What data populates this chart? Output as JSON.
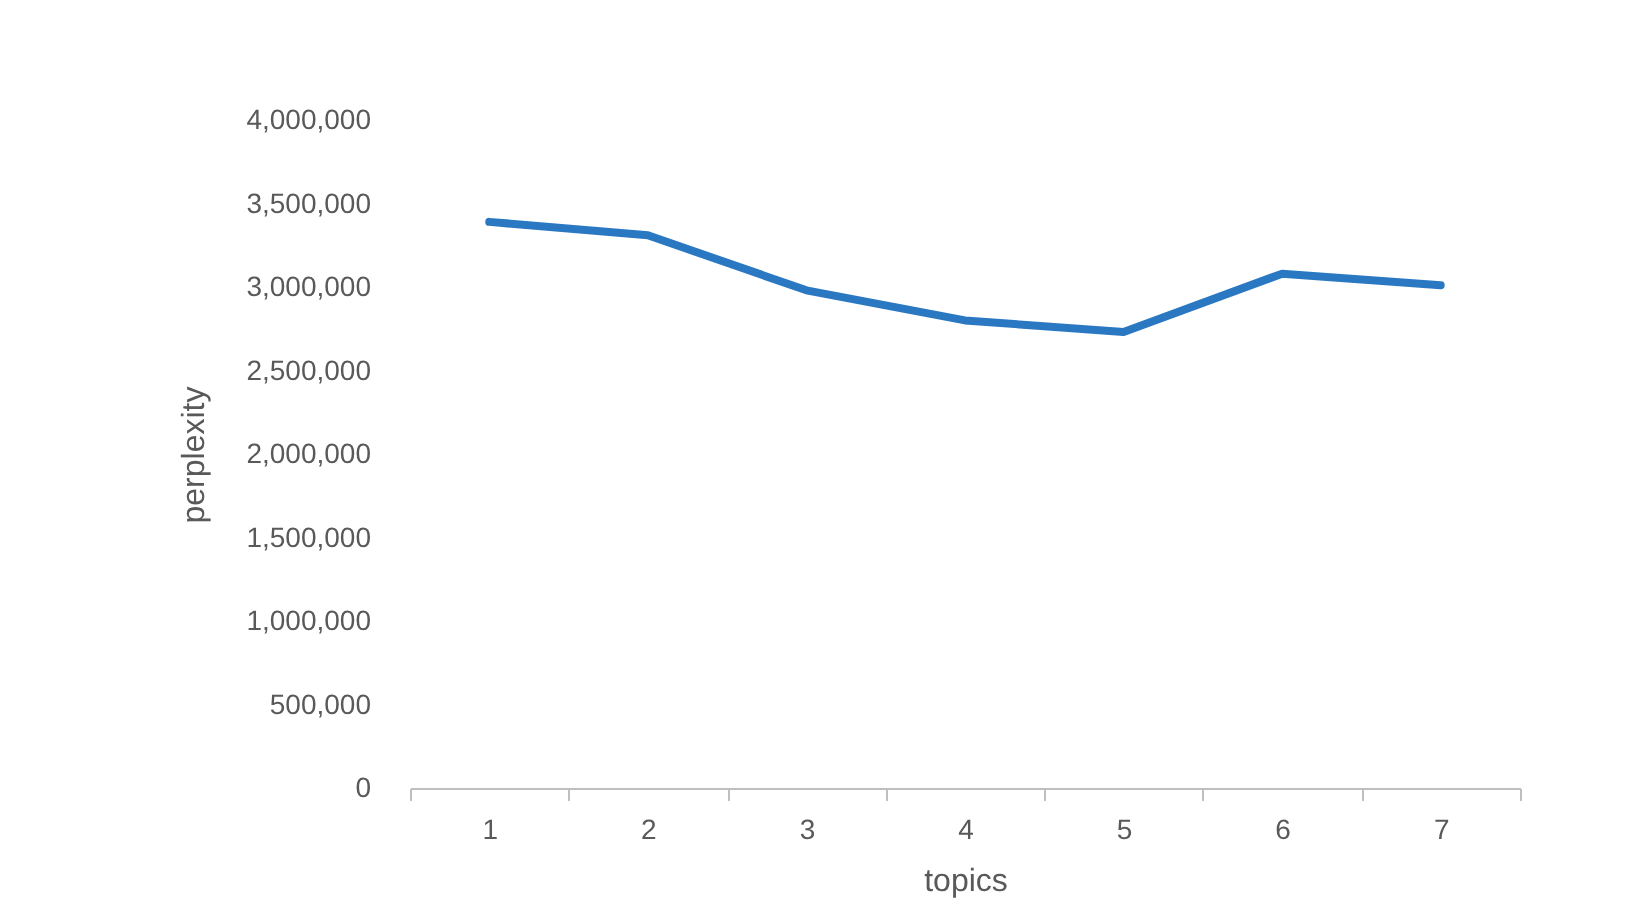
{
  "chart_data": {
    "type": "line",
    "xlabel": "topics",
    "ylabel": "perplexity",
    "categories": [
      "1",
      "2",
      "3",
      "4",
      "5",
      "6",
      "7"
    ],
    "series": [
      {
        "color": "#2a78c2",
        "values": [
          3390000,
          3310000,
          2980000,
          2800000,
          2730000,
          3080000,
          3010000
        ]
      }
    ],
    "ylim": [
      0,
      4000000
    ],
    "yticks": [
      0,
      {
        "value": 500000,
        "label": "500,000"
      },
      {
        "value": 1000000,
        "label": "1,000,000"
      },
      {
        "value": 1500000,
        "label": "1,500,000"
      },
      {
        "value": 2000000,
        "label": "2,000,000"
      },
      {
        "value": 2500000,
        "label": "2,500,000"
      },
      {
        "value": 3000000,
        "label": "3,000,000"
      },
      {
        "value": 3500000,
        "label": "3,500,000"
      },
      {
        "value": 4000000,
        "label": "4,000,000"
      }
    ],
    "grid": false,
    "marker": "none",
    "line_style": "solid"
  }
}
